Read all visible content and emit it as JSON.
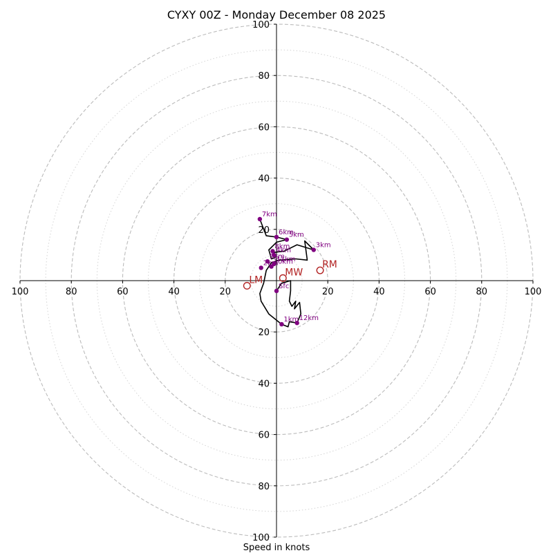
{
  "chart_data": {
    "type": "line",
    "title": "CYXY 00Z - Monday December 08 2025",
    "xlabel": "Speed in knots",
    "ylabel": "",
    "xlim": [
      -100,
      100
    ],
    "ylim": [
      -100,
      100
    ],
    "ring_ticks": [
      20,
      40,
      60,
      80,
      100
    ],
    "axis_tick_labels": [
      "100",
      "80",
      "60",
      "40",
      "20",
      "20",
      "40",
      "60",
      "80",
      "100"
    ],
    "rings_dashed": [
      20,
      40,
      60,
      80,
      100
    ],
    "rings_dotted": [
      10,
      30,
      50,
      70,
      90
    ],
    "colors": {
      "ring": "#bbbbbb",
      "trace": "#000000",
      "height_marker": "#800080",
      "storm_motion": "#b22222"
    },
    "series": [
      {
        "values_xy": [
          [
            0.0,
            -4.0
          ],
          [
            2.0,
            -1.0
          ],
          [
            5.5,
            0.0
          ],
          [
            5.5,
            -4.0
          ],
          [
            5.0,
            -8.0
          ],
          [
            6.0,
            -10.0
          ],
          [
            7.5,
            -8.0
          ],
          [
            7.0,
            -11.0
          ],
          [
            9.0,
            -8.5
          ],
          [
            9.5,
            -13.0
          ],
          [
            8.0,
            -16.5
          ],
          [
            5.0,
            -16.0
          ],
          [
            4.5,
            -18.0
          ],
          [
            2.0,
            -17.0
          ],
          [
            -3.0,
            -13.0
          ],
          [
            -6.0,
            -8.0
          ],
          [
            -6.5,
            -5.0
          ],
          [
            -5.0,
            -1.0
          ],
          [
            -4.0,
            4.0
          ],
          [
            -2.0,
            7.0
          ],
          [
            1.0,
            8.0
          ],
          [
            7.5,
            8.5
          ],
          [
            12.0,
            8.0
          ],
          [
            11.0,
            15.5
          ],
          [
            14.5,
            12.0
          ],
          [
            8.0,
            14.0
          ],
          [
            3.0,
            11.5
          ],
          [
            -1.0,
            11.0
          ],
          [
            -0.5,
            9.0
          ],
          [
            -2.0,
            8.5
          ],
          [
            -3.0,
            12.0
          ],
          [
            0.0,
            15.0
          ],
          [
            4.0,
            16.0
          ],
          [
            0.0,
            17.0
          ],
          [
            -4.0,
            17.5
          ],
          [
            -6.5,
            24.0
          ]
        ]
      }
    ],
    "height_markers": [
      {
        "label": "Sfc",
        "x": 0.0,
        "y": -4.0
      },
      {
        "label": "1km",
        "x": 2.0,
        "y": -17.0
      },
      {
        "label": "12km",
        "x": 8.0,
        "y": -16.5
      },
      {
        "label": "2km",
        "x": -6.0,
        "y": 5.0
      },
      {
        "label": "3km",
        "x": 14.5,
        "y": 12.0
      },
      {
        "label": "4km",
        "x": -1.0,
        "y": 10.0
      },
      {
        "label": "5km",
        "x": 4.0,
        "y": 16.0
      },
      {
        "label": "6km",
        "x": 0.0,
        "y": 17.0
      },
      {
        "label": "7km",
        "x": -6.5,
        "y": 24.0
      },
      {
        "label": "8km",
        "x": -1.5,
        "y": 11.5
      },
      {
        "label": "9km",
        "x": -3.5,
        "y": 7.5
      },
      {
        "label": "10km",
        "x": -2.0,
        "y": 5.5
      },
      {
        "label": "11km",
        "x": -1.0,
        "y": 6.5
      }
    ],
    "storm_motion": [
      {
        "label": "RM",
        "x": 17.0,
        "y": 4.0
      },
      {
        "label": "LM",
        "x": -11.5,
        "y": -2.0
      },
      {
        "label": "MW",
        "x": 2.5,
        "y": 1.0
      }
    ]
  }
}
